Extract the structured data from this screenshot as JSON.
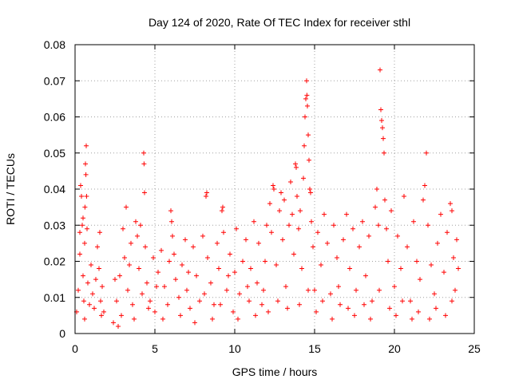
{
  "chart_data": {
    "type": "scatter",
    "title": "Day 124 of 2020, Rate Of TEC Index for receiver sthl",
    "xlabel": "GPS time / hours",
    "ylabel": "ROTI / TECUs",
    "xlim": [
      0,
      25
    ],
    "ylim": [
      0,
      0.08
    ],
    "xticks": [
      0,
      5,
      10,
      15,
      20,
      25
    ],
    "xtick_labels": [
      "0",
      "5",
      "10",
      "15",
      "20",
      "25"
    ],
    "yticks": [
      0,
      0.01,
      0.02,
      0.03,
      0.04,
      0.05,
      0.06,
      0.07,
      0.08
    ],
    "ytick_labels": [
      "0",
      "0.01",
      "0.02",
      "0.03",
      "0.04",
      "0.05",
      "0.06",
      "0.07",
      "0.08"
    ],
    "grid": true,
    "marker": "+",
    "color": "#ff0000",
    "series": [
      {
        "name": "ROTI",
        "points": [
          [
            0.1,
            0.006
          ],
          [
            0.2,
            0.012
          ],
          [
            0.3,
            0.022
          ],
          [
            0.35,
            0.041
          ],
          [
            0.4,
            0.038
          ],
          [
            0.45,
            0.03
          ],
          [
            0.5,
            0.016
          ],
          [
            0.55,
            0.009
          ],
          [
            0.6,
            0.025
          ],
          [
            0.62,
            0.035
          ],
          [
            0.65,
            0.047
          ],
          [
            0.68,
            0.044
          ],
          [
            0.7,
            0.052
          ],
          [
            0.72,
            0.038
          ],
          [
            0.75,
            0.029
          ],
          [
            0.8,
            0.014
          ],
          [
            0.9,
            0.008
          ],
          [
            1.0,
            0.019
          ],
          [
            1.1,
            0.011
          ],
          [
            1.2,
            0.007
          ],
          [
            1.3,
            0.015
          ],
          [
            1.4,
            0.024
          ],
          [
            1.5,
            0.018
          ],
          [
            1.6,
            0.009
          ],
          [
            1.7,
            0.013
          ],
          [
            0.3,
            0.028
          ],
          [
            0.5,
            0.032
          ],
          [
            0.6,
            0.004
          ],
          [
            1.55,
            0.028
          ],
          [
            1.65,
            0.005
          ],
          [
            2.4,
            0.003
          ],
          [
            2.6,
            0.009
          ],
          [
            2.8,
            0.016
          ],
          [
            3.0,
            0.029
          ],
          [
            3.1,
            0.021
          ],
          [
            3.2,
            0.035
          ],
          [
            3.3,
            0.012
          ],
          [
            3.5,
            0.025
          ],
          [
            3.6,
            0.008
          ],
          [
            3.8,
            0.031
          ],
          [
            3.9,
            0.027
          ],
          [
            4.0,
            0.018
          ],
          [
            4.1,
            0.03
          ],
          [
            4.2,
            0.011
          ],
          [
            4.3,
            0.05
          ],
          [
            4.32,
            0.047
          ],
          [
            4.35,
            0.039
          ],
          [
            4.4,
            0.024
          ],
          [
            4.5,
            0.014
          ],
          [
            4.7,
            0.009
          ],
          [
            4.9,
            0.021
          ],
          [
            5.0,
            0.006
          ],
          [
            5.2,
            0.017
          ],
          [
            5.4,
            0.023
          ],
          [
            5.6,
            0.013
          ],
          [
            5.8,
            0.008
          ],
          [
            5.9,
            0.02
          ],
          [
            6.0,
            0.034
          ],
          [
            6.05,
            0.031
          ],
          [
            6.1,
            0.027
          ],
          [
            6.2,
            0.022
          ],
          [
            6.3,
            0.015
          ],
          [
            6.5,
            0.01
          ],
          [
            6.7,
            0.019
          ],
          [
            6.9,
            0.026
          ],
          [
            7.0,
            0.012
          ],
          [
            7.2,
            0.007
          ],
          [
            7.4,
            0.024
          ],
          [
            7.6,
            0.016
          ],
          [
            7.8,
            0.009
          ],
          [
            8.0,
            0.027
          ],
          [
            8.2,
            0.038
          ],
          [
            8.25,
            0.039
          ],
          [
            8.3,
            0.021
          ],
          [
            8.5,
            0.014
          ],
          [
            8.7,
            0.008
          ],
          [
            8.9,
            0.025
          ],
          [
            9.0,
            0.018
          ],
          [
            9.2,
            0.034
          ],
          [
            9.25,
            0.035
          ],
          [
            9.3,
            0.028
          ],
          [
            9.5,
            0.012
          ],
          [
            9.7,
            0.022
          ],
          [
            9.9,
            0.006
          ],
          [
            10.0,
            0.017
          ],
          [
            10.1,
            0.029
          ],
          [
            10.3,
            0.011
          ],
          [
            10.5,
            0.02
          ],
          [
            10.7,
            0.026
          ],
          [
            10.9,
            0.009
          ],
          [
            11.0,
            0.018
          ],
          [
            11.2,
            0.031
          ],
          [
            11.4,
            0.014
          ],
          [
            11.5,
            0.025
          ],
          [
            11.7,
            0.008
          ],
          [
            11.9,
            0.02
          ],
          [
            12.0,
            0.03
          ],
          [
            12.2,
            0.036
          ],
          [
            12.3,
            0.028
          ],
          [
            12.4,
            0.041
          ],
          [
            12.45,
            0.04
          ],
          [
            12.6,
            0.019
          ],
          [
            12.8,
            0.034
          ],
          [
            12.9,
            0.039
          ],
          [
            13.0,
            0.026
          ],
          [
            13.1,
            0.037
          ],
          [
            13.2,
            0.013
          ],
          [
            13.4,
            0.03
          ],
          [
            13.5,
            0.042
          ],
          [
            13.6,
            0.033
          ],
          [
            13.7,
            0.022
          ],
          [
            13.8,
            0.047
          ],
          [
            13.85,
            0.046
          ],
          [
            13.9,
            0.038
          ],
          [
            14.0,
            0.029
          ],
          [
            14.1,
            0.034
          ],
          [
            14.2,
            0.018
          ],
          [
            14.3,
            0.043
          ],
          [
            14.35,
            0.052
          ],
          [
            14.4,
            0.06
          ],
          [
            14.45,
            0.065
          ],
          [
            14.5,
            0.07
          ],
          [
            14.52,
            0.066
          ],
          [
            14.55,
            0.063
          ],
          [
            14.6,
            0.055
          ],
          [
            14.65,
            0.048
          ],
          [
            14.7,
            0.04
          ],
          [
            14.75,
            0.039
          ],
          [
            14.8,
            0.031
          ],
          [
            14.9,
            0.024
          ],
          [
            15.0,
            0.012
          ],
          [
            15.2,
            0.028
          ],
          [
            15.4,
            0.019
          ],
          [
            15.6,
            0.033
          ],
          [
            15.8,
            0.025
          ],
          [
            16.0,
            0.011
          ],
          [
            16.2,
            0.03
          ],
          [
            16.4,
            0.021
          ],
          [
            16.6,
            0.008
          ],
          [
            16.8,
            0.026
          ],
          [
            17.0,
            0.033
          ],
          [
            17.2,
            0.018
          ],
          [
            17.4,
            0.029
          ],
          [
            17.6,
            0.012
          ],
          [
            17.8,
            0.024
          ],
          [
            18.0,
            0.031
          ],
          [
            18.2,
            0.016
          ],
          [
            18.4,
            0.027
          ],
          [
            18.6,
            0.009
          ],
          [
            18.8,
            0.035
          ],
          [
            18.9,
            0.04
          ],
          [
            19.0,
            0.03
          ],
          [
            19.1,
            0.073
          ],
          [
            19.15,
            0.062
          ],
          [
            19.2,
            0.059
          ],
          [
            19.25,
            0.057
          ],
          [
            19.3,
            0.054
          ],
          [
            19.35,
            0.05
          ],
          [
            19.4,
            0.037
          ],
          [
            19.5,
            0.029
          ],
          [
            19.6,
            0.02
          ],
          [
            19.8,
            0.034
          ],
          [
            20.0,
            0.013
          ],
          [
            20.2,
            0.027
          ],
          [
            20.4,
            0.018
          ],
          [
            20.6,
            0.038
          ],
          [
            20.8,
            0.024
          ],
          [
            21.0,
            0.009
          ],
          [
            21.2,
            0.031
          ],
          [
            21.4,
            0.02
          ],
          [
            21.6,
            0.015
          ],
          [
            21.8,
            0.037
          ],
          [
            21.9,
            0.041
          ],
          [
            22.0,
            0.05
          ],
          [
            22.1,
            0.03
          ],
          [
            22.3,
            0.019
          ],
          [
            22.5,
            0.011
          ],
          [
            22.7,
            0.025
          ],
          [
            22.9,
            0.033
          ],
          [
            23.1,
            0.017
          ],
          [
            23.3,
            0.028
          ],
          [
            23.5,
            0.036
          ],
          [
            23.6,
            0.034
          ],
          [
            23.7,
            0.021
          ],
          [
            23.8,
            0.012
          ],
          [
            23.9,
            0.026
          ],
          [
            24.0,
            0.018
          ],
          [
            2.5,
            0.015
          ],
          [
            2.9,
            0.005
          ],
          [
            3.4,
            0.019
          ],
          [
            3.7,
            0.004
          ],
          [
            4.6,
            0.007
          ],
          [
            5.1,
            0.013
          ],
          [
            5.5,
            0.004
          ],
          [
            6.6,
            0.005
          ],
          [
            7.1,
            0.017
          ],
          [
            7.5,
            0.003
          ],
          [
            8.1,
            0.011
          ],
          [
            8.6,
            0.004
          ],
          [
            9.1,
            0.008
          ],
          [
            9.6,
            0.016
          ],
          [
            10.2,
            0.004
          ],
          [
            10.8,
            0.013
          ],
          [
            11.3,
            0.005
          ],
          [
            11.8,
            0.012
          ],
          [
            12.1,
            0.006
          ],
          [
            12.7,
            0.009
          ],
          [
            13.3,
            0.007
          ],
          [
            14.05,
            0.008
          ],
          [
            14.6,
            0.012
          ],
          [
            15.1,
            0.006
          ],
          [
            15.5,
            0.009
          ],
          [
            16.1,
            0.004
          ],
          [
            16.5,
            0.013
          ],
          [
            17.1,
            0.007
          ],
          [
            17.5,
            0.005
          ],
          [
            18.1,
            0.008
          ],
          [
            18.5,
            0.004
          ],
          [
            19.05,
            0.012
          ],
          [
            19.7,
            0.007
          ],
          [
            20.1,
            0.005
          ],
          [
            20.5,
            0.009
          ],
          [
            21.1,
            0.004
          ],
          [
            21.5,
            0.006
          ],
          [
            22.2,
            0.004
          ],
          [
            22.6,
            0.007
          ],
          [
            23.2,
            0.005
          ],
          [
            23.6,
            0.009
          ],
          [
            1.8,
            0.006
          ],
          [
            2.7,
            0.002
          ]
        ]
      }
    ]
  }
}
